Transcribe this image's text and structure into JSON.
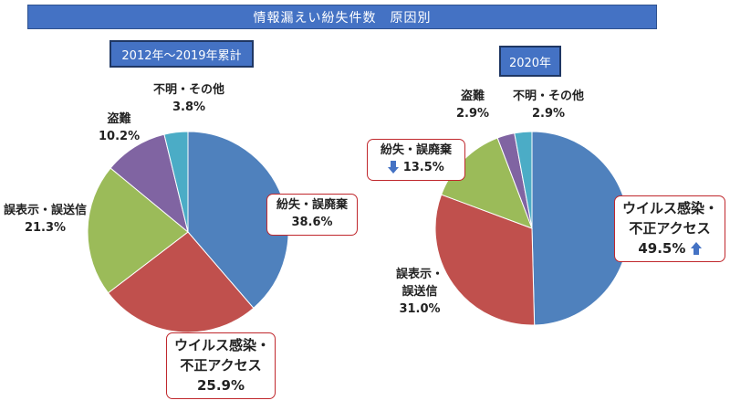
{
  "title": "情報漏えい紛失件数　原因別",
  "chart_data": [
    {
      "type": "pie",
      "subtitle": "2012年～2019年累計",
      "slices": [
        {
          "name": "紛失・誤廃棄",
          "value": 38.6,
          "label": "38.6%",
          "color": "#4f81bd"
        },
        {
          "name": "ウイルス感染・不正アクセス",
          "value": 25.9,
          "label": "25.9%",
          "color": "#c0504d"
        },
        {
          "name": "誤表示・誤送信",
          "value": 21.3,
          "label": "21.3%",
          "color": "#9bbb59"
        },
        {
          "name": "盗難",
          "value": 10.2,
          "label": "10.2%",
          "color": "#8064a2"
        },
        {
          "name": "不明・その他",
          "value": 3.8,
          "label": "3.8%",
          "color": "#4bacc6"
        }
      ]
    },
    {
      "type": "pie",
      "subtitle": "2020年",
      "slices": [
        {
          "name": "ウイルス感染・不正アクセス",
          "value": 49.5,
          "label": "49.5%",
          "color": "#4f81bd",
          "trend": "up"
        },
        {
          "name": "誤表示・誤送信",
          "value": 31.0,
          "label": "31.0%",
          "color": "#c0504d"
        },
        {
          "name": "紛失・誤廃棄",
          "value": 13.5,
          "label": "13.5%",
          "color": "#9bbb59",
          "trend": "down"
        },
        {
          "name": "盗難",
          "value": 2.9,
          "label": "2.9%",
          "color": "#8064a2"
        },
        {
          "name": "不明・その他",
          "value": 2.9,
          "label": "2.9%",
          "color": "#4bacc6"
        }
      ]
    }
  ],
  "labels": {
    "left": {
      "loss_name": "紛失・誤廃棄",
      "loss_val": "38.6%",
      "virus_name_1": "ウイルス感染・",
      "virus_name_2": "不正アクセス",
      "virus_val": "25.9%",
      "misdisplay_name": "誤表示・誤送信",
      "misdisplay_val": "21.3%",
      "theft_name": "盗難",
      "theft_val": "10.2%",
      "other_name": "不明・その他",
      "other_val": "3.8%"
    },
    "right": {
      "loss_name": "紛失・誤廃棄",
      "loss_val": "13.5%",
      "virus_name_1": "ウイルス感染・",
      "virus_name_2": "不正アクセス",
      "virus_val": "49.5%",
      "misdisplay_name_1": "誤表示・",
      "misdisplay_name_2": "誤送信",
      "misdisplay_val": "31.0%",
      "theft_name": "盗難",
      "theft_val": "2.9%",
      "other_name": "不明・その他",
      "other_val": "2.9%"
    }
  },
  "arrow_color": "#4472c4"
}
